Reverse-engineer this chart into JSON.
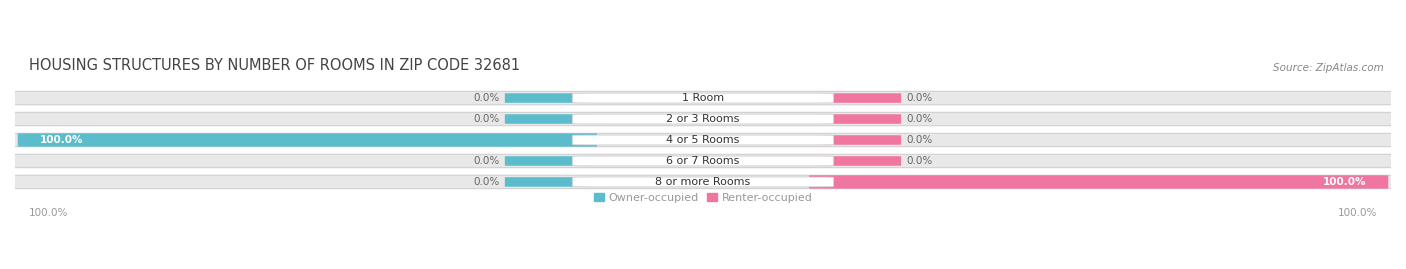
{
  "title": "HOUSING STRUCTURES BY NUMBER OF ROOMS IN ZIP CODE 32681",
  "source": "Source: ZipAtlas.com",
  "categories": [
    "1 Room",
    "2 or 3 Rooms",
    "4 or 5 Rooms",
    "6 or 7 Rooms",
    "8 or more Rooms"
  ],
  "owner_values": [
    0.0,
    0.0,
    100.0,
    0.0,
    0.0
  ],
  "renter_values": [
    0.0,
    0.0,
    0.0,
    0.0,
    100.0
  ],
  "owner_color": "#5bbccc",
  "renter_color": "#f075a0",
  "bar_bg_color": "#e8e8e8",
  "bar_border_color": "#d0d0d0",
  "label_box_color": "#ffffff",
  "background_color": "#ffffff",
  "title_fontsize": 10.5,
  "label_fontsize": 7.5,
  "category_fontsize": 8,
  "legend_fontsize": 8,
  "footer_fontsize": 7.5,
  "title_color": "#444444",
  "label_color": "#666666",
  "category_color": "#333333",
  "footer_color": "#999999",
  "source_color": "#888888"
}
